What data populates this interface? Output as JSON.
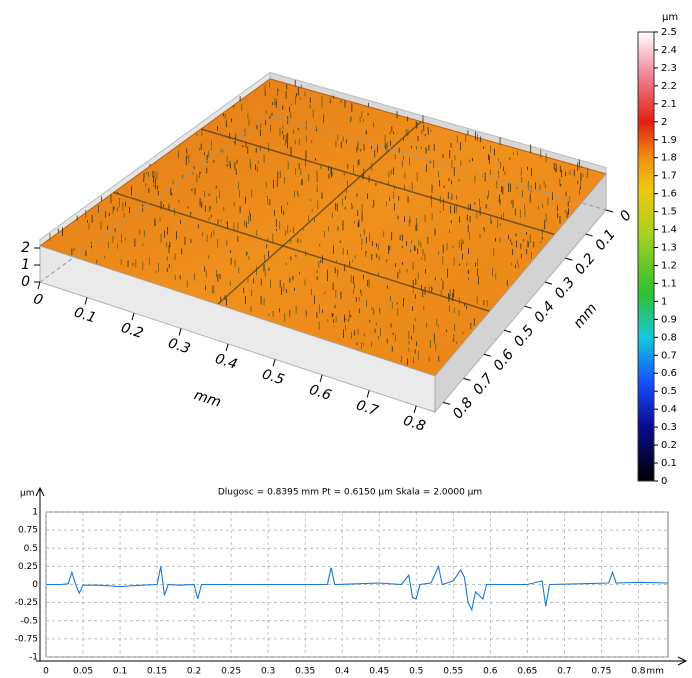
{
  "chart_data": [
    {
      "type": "surface",
      "xlabel": "mm",
      "ylabel": "mm",
      "xlim": [
        0,
        0.84
      ],
      "ylim": [
        0,
        0.84
      ],
      "zlim": [
        0,
        2.5
      ],
      "xticks": [
        0,
        0.1,
        0.2,
        0.3,
        0.4,
        0.5,
        0.6,
        0.7,
        0.8
      ],
      "yticks": [
        0,
        0.1,
        0.2,
        0.3,
        0.4,
        0.5,
        0.6,
        0.7,
        0.8
      ],
      "zticks": [
        0,
        1,
        2
      ]
    },
    {
      "type": "colorbar",
      "title": "µm",
      "lim": [
        0,
        2.5
      ],
      "ticks": [
        0,
        0.1,
        0.2,
        0.3,
        0.4,
        0.5,
        0.6,
        0.7,
        0.8,
        0.9,
        1,
        1.1,
        1.2,
        1.3,
        1.4,
        1.5,
        1.6,
        1.7,
        1.8,
        1.9,
        2,
        2.1,
        2.2,
        2.3,
        2.4,
        2.5
      ]
    },
    {
      "type": "line",
      "title": "Dlugosc = 0.8395 mm  Pt = 0.6150 µm  Skala = 2.0000 µm",
      "ylabel": "µm",
      "xlabel": "mm",
      "grid": true,
      "xlim": [
        0,
        0.84
      ],
      "ylim": [
        -1,
        1
      ],
      "xticks": [
        0,
        0.05,
        0.1,
        0.15,
        0.2,
        0.25,
        0.3,
        0.35,
        0.4,
        0.45,
        0.5,
        0.55,
        0.6,
        0.65,
        0.7,
        0.75,
        0.8
      ],
      "yticks": [
        1,
        0.75,
        0.5,
        0.25,
        0,
        -0.25,
        -0.5,
        -0.75,
        -1
      ],
      "x": [
        0,
        0.02,
        0.03,
        0.035,
        0.04,
        0.045,
        0.05,
        0.07,
        0.09,
        0.1,
        0.11,
        0.13,
        0.15,
        0.155,
        0.16,
        0.165,
        0.18,
        0.2,
        0.205,
        0.21,
        0.25,
        0.3,
        0.35,
        0.38,
        0.385,
        0.39,
        0.42,
        0.45,
        0.48,
        0.49,
        0.495,
        0.5,
        0.505,
        0.52,
        0.53,
        0.535,
        0.55,
        0.56,
        0.565,
        0.57,
        0.575,
        0.58,
        0.59,
        0.595,
        0.62,
        0.65,
        0.67,
        0.675,
        0.68,
        0.72,
        0.76,
        0.765,
        0.77,
        0.8,
        0.84
      ],
      "series": [
        {
          "color": "#1a78d6",
          "values": [
            0,
            0,
            0.01,
            0.17,
            0,
            -0.12,
            -0.01,
            -0.01,
            -0.02,
            -0.03,
            -0.02,
            -0.01,
            0,
            0.25,
            -0.15,
            0,
            -0.01,
            0,
            -0.2,
            0,
            0,
            0,
            0,
            0,
            0.23,
            0,
            0.01,
            0.02,
            0,
            0.13,
            -0.18,
            -0.2,
            0,
            0.02,
            0.25,
            0,
            0.05,
            0.2,
            0.1,
            -0.25,
            -0.35,
            -0.1,
            -0.2,
            0,
            0,
            0,
            0.05,
            -0.3,
            0,
            0.01,
            0.02,
            0.17,
            0.02,
            0.03,
            0.02
          ]
        }
      ]
    }
  ]
}
